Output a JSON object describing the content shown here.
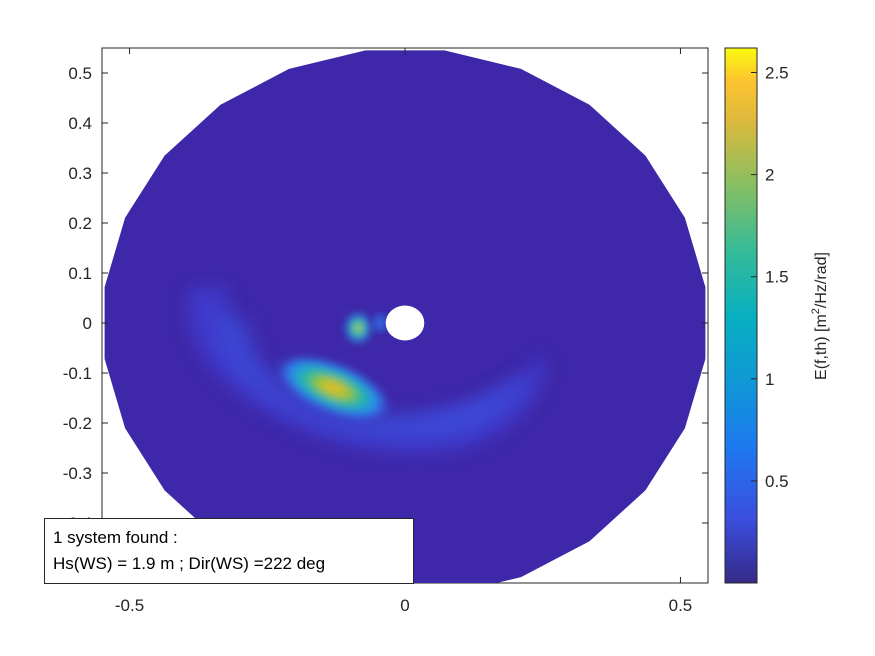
{
  "chart_data": {
    "type": "polar-contour",
    "xlim": [
      -0.55,
      0.55
    ],
    "ylim": [
      -0.52,
      0.55
    ],
    "xticks": [
      "-0.5",
      "0",
      "0.5"
    ],
    "yticks": [
      "0.5",
      "0.4",
      "0.3",
      "0.2",
      "0.1",
      "0",
      "-0.1",
      "-0.2",
      "-0.3",
      "-0.4"
    ],
    "radial_extent": 0.55,
    "inner_hole_radius": 0.035,
    "colormap": "parula",
    "colorbar": {
      "label_parts": [
        "E(f,th) [m",
        "2",
        "/Hz/rad]"
      ],
      "ticks": [
        "2.5",
        "2",
        "1.5",
        "1",
        "0.5"
      ],
      "tick_values": [
        2.5,
        2.0,
        1.5,
        1.0,
        0.5
      ],
      "range": [
        0.0,
        2.62
      ]
    },
    "peaks": [
      {
        "x": -0.13,
        "y": -0.13,
        "value": 2.2
      },
      {
        "x": -0.085,
        "y": -0.01,
        "value": 2.0
      }
    ],
    "background_color": "#3e27a8",
    "grid": false
  },
  "annotation": {
    "line1": "1 system found :",
    "line2": "Hs(WS) =  1.9 m ; Dir(WS) =222 deg"
  }
}
